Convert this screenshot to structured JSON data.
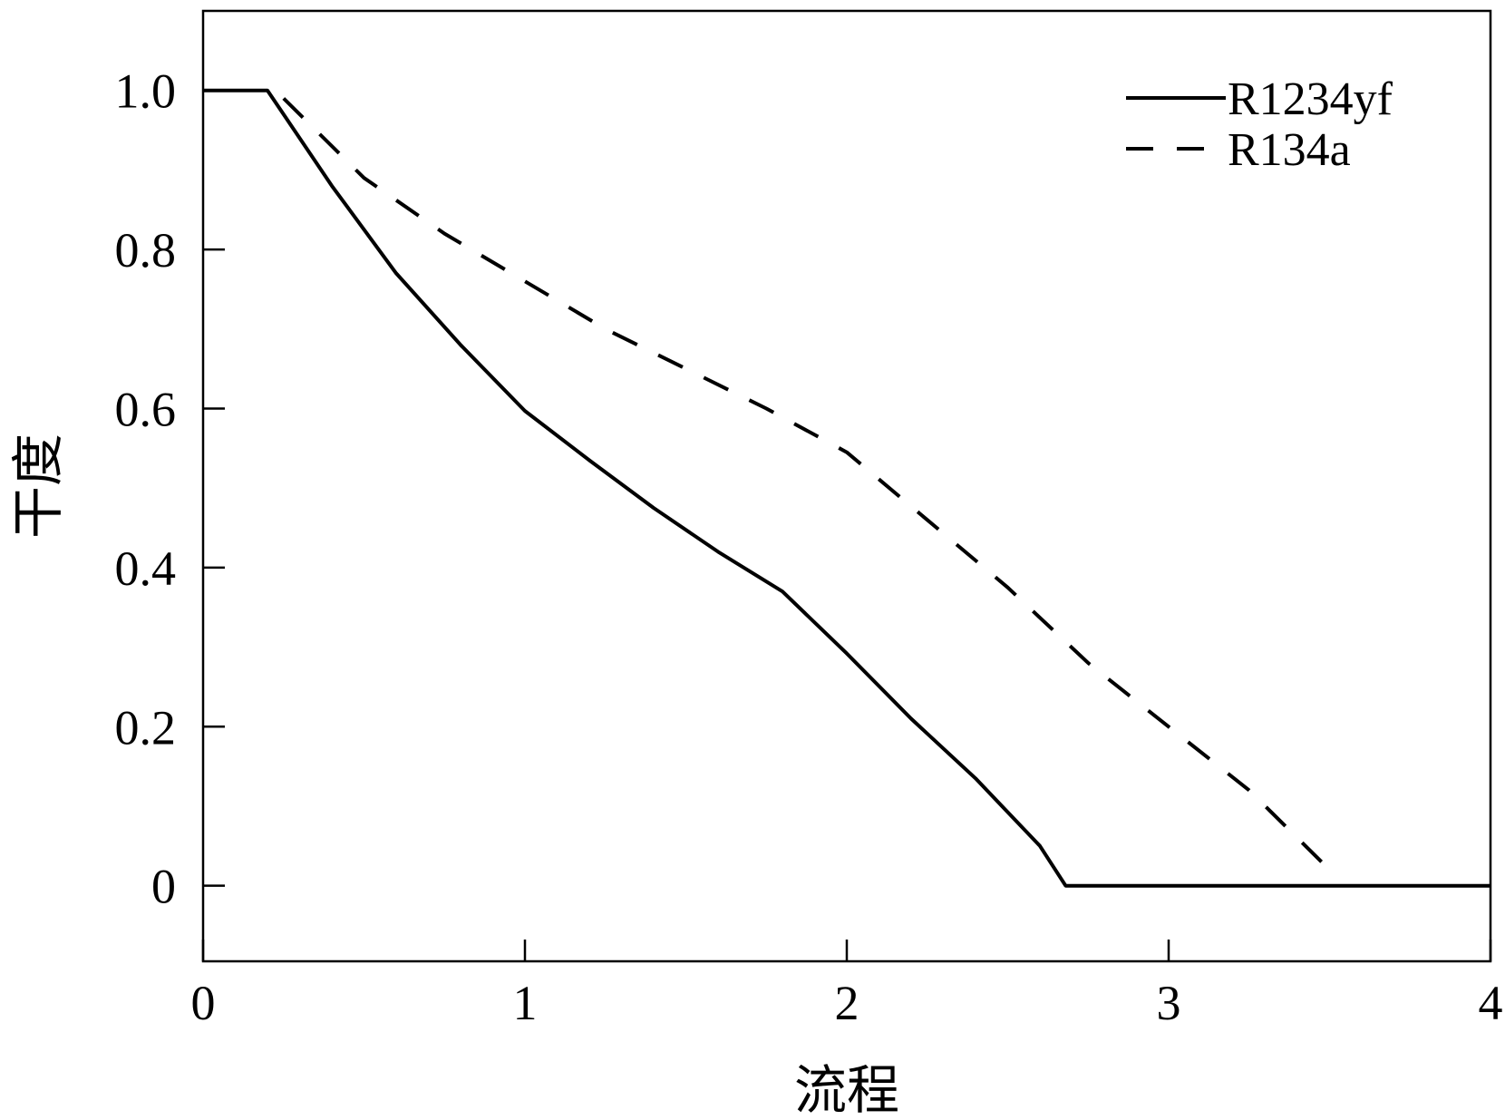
{
  "chart_data": {
    "type": "line",
    "xlabel": "流程",
    "ylabel": "干度",
    "xlim": [
      0,
      4
    ],
    "ylim": [
      -0.095,
      1.1
    ],
    "x_ticks": [
      0,
      1,
      2,
      3,
      4
    ],
    "x_tick_labels": [
      "0",
      "1",
      "2",
      "3",
      "4"
    ],
    "y_ticks": [
      0,
      0.2,
      0.4,
      0.6,
      0.8,
      1.0
    ],
    "y_tick_labels": [
      "0",
      "0.2",
      "0.4",
      "0.6",
      "0.8",
      "1.0"
    ],
    "grid": false,
    "legend_position": "top-right",
    "series": [
      {
        "name": "R1234yf",
        "style": "solid",
        "color": "#000000",
        "points": [
          [
            0,
            1.0
          ],
          [
            0.2,
            1.0
          ],
          [
            0.4,
            0.88
          ],
          [
            0.6,
            0.77
          ],
          [
            0.8,
            0.68
          ],
          [
            1.0,
            0.597
          ],
          [
            1.2,
            0.535
          ],
          [
            1.4,
            0.475
          ],
          [
            1.6,
            0.42
          ],
          [
            1.8,
            0.37
          ],
          [
            2.0,
            0.292
          ],
          [
            2.2,
            0.21
          ],
          [
            2.4,
            0.135
          ],
          [
            2.6,
            0.05
          ],
          [
            2.68,
            0.0
          ],
          [
            4.0,
            0.0
          ]
        ]
      },
      {
        "name": "R134a",
        "style": "dashed",
        "color": "#000000",
        "points": [
          [
            0.25,
            0.99
          ],
          [
            0.5,
            0.89
          ],
          [
            0.75,
            0.82
          ],
          [
            1.0,
            0.76
          ],
          [
            1.25,
            0.7
          ],
          [
            1.5,
            0.65
          ],
          [
            1.75,
            0.6
          ],
          [
            2.0,
            0.545
          ],
          [
            2.25,
            0.46
          ],
          [
            2.5,
            0.375
          ],
          [
            2.75,
            0.28
          ],
          [
            3.0,
            0.2
          ],
          [
            3.25,
            0.12
          ],
          [
            3.5,
            0.02
          ]
        ]
      }
    ]
  }
}
